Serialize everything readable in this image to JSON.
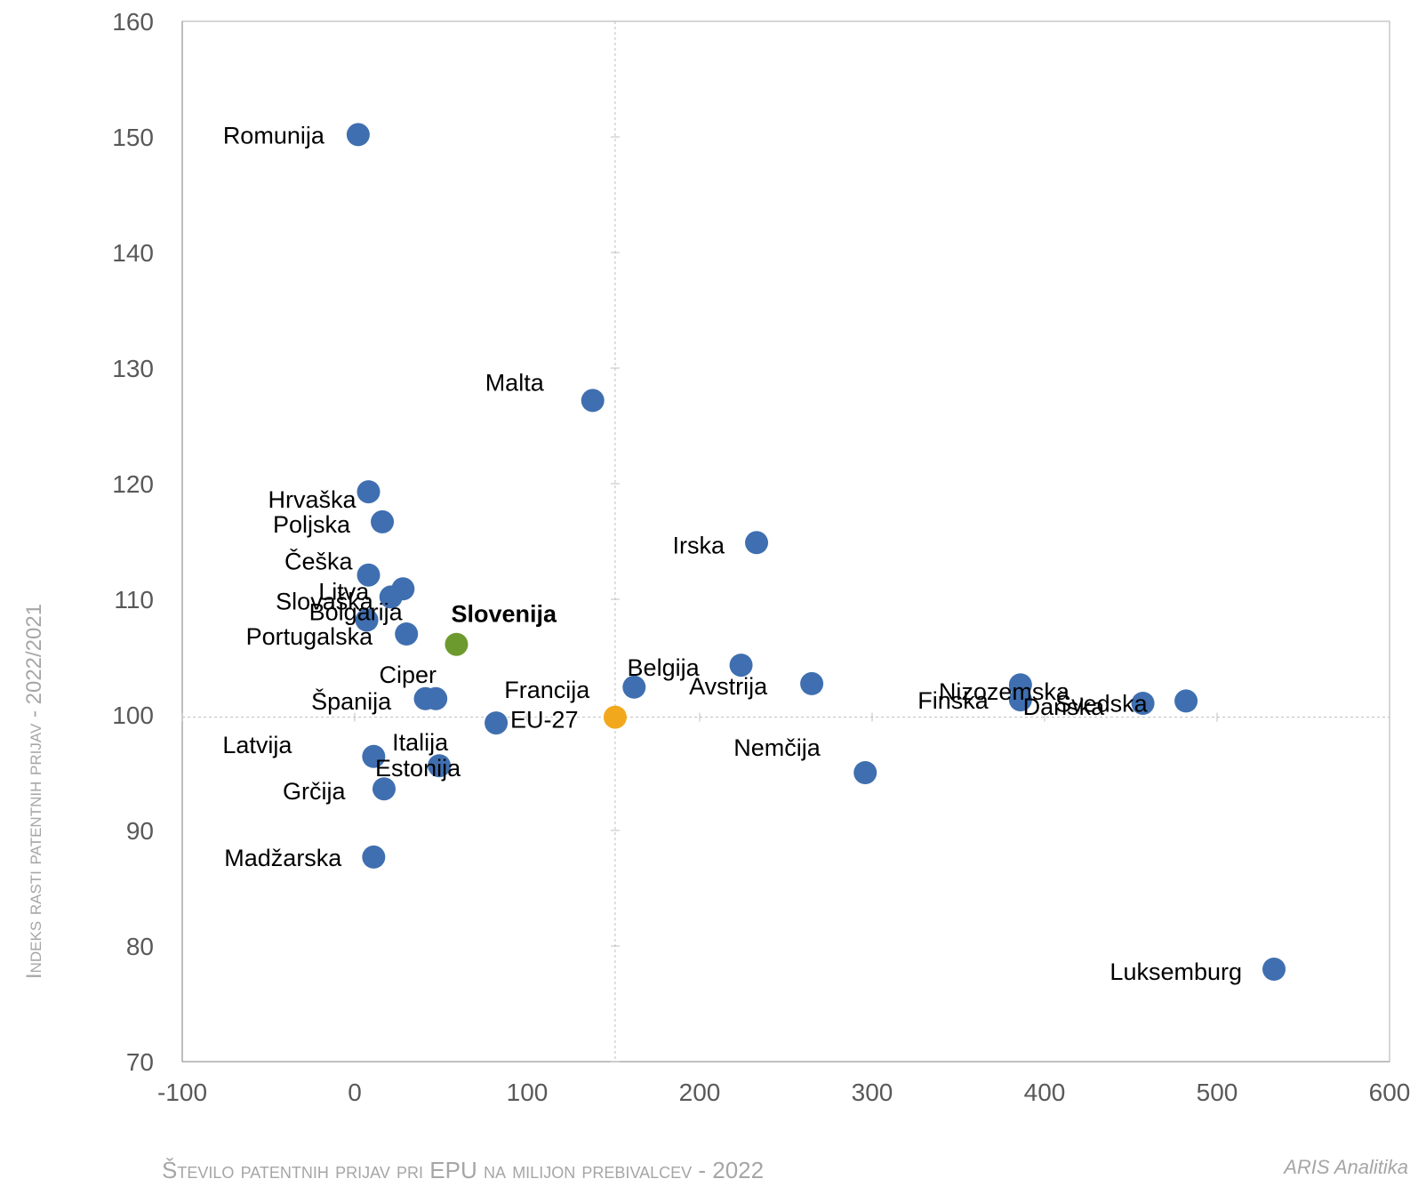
{
  "chart_data": {
    "type": "scatter",
    "title": "",
    "xlabel": "Število patentnih prijav pri EPU na milijon prebivalcev - 2022",
    "ylabel": "Indeks rasti patentnih prijav - 2022/2021",
    "xlim": [
      -100,
      600
    ],
    "ylim": [
      70,
      160
    ],
    "xticks": [
      "-100",
      "0",
      "100",
      "200",
      "300",
      "400",
      "500",
      "600"
    ],
    "yticks": [
      "70",
      "80",
      "90",
      "100",
      "110",
      "120",
      "130",
      "140",
      "150",
      "160"
    ],
    "reference_lines": {
      "x": 151,
      "y": 99.8
    },
    "grid": false,
    "colors": {
      "default": "#3f6fb0",
      "highlight": "#6d9a2f",
      "eu": "#f2a81d",
      "axis": "#a6a6a6",
      "tick": "#595959"
    },
    "points": [
      {
        "label": "Romunija",
        "x": 2,
        "y": 150.2,
        "group": "default"
      },
      {
        "label": "Malta",
        "x": 138,
        "y": 127.2,
        "group": "default"
      },
      {
        "label": "Hrvaška",
        "x": 8,
        "y": 119.3,
        "group": "default"
      },
      {
        "label": "Poljska",
        "x": 16,
        "y": 116.7,
        "group": "default"
      },
      {
        "label": "Irska",
        "x": 233,
        "y": 114.9,
        "group": "default"
      },
      {
        "label": "Češka",
        "x": 8,
        "y": 112.1,
        "group": "default"
      },
      {
        "label": "Litva",
        "x": 28,
        "y": 110.9,
        "group": "default"
      },
      {
        "label": "Slovaška",
        "x": 21,
        "y": 110.2,
        "group": "default"
      },
      {
        "label": "Bolgarija",
        "x": 7,
        "y": 108.2,
        "group": "default"
      },
      {
        "label": "Portugalska",
        "x": 30,
        "y": 107.0,
        "group": "default"
      },
      {
        "label": "Slovenija",
        "x": 59,
        "y": 106.1,
        "group": "highlight"
      },
      {
        "label": "Belgija",
        "x": 224,
        "y": 104.3,
        "group": "default"
      },
      {
        "label": "Avstrija",
        "x": 265,
        "y": 102.7,
        "group": "default"
      },
      {
        "label": "Francija",
        "x": 162,
        "y": 102.4,
        "group": "default"
      },
      {
        "label": "Nizozemska",
        "x": 386,
        "y": 102.6,
        "group": "default"
      },
      {
        "label": "Ciper",
        "x": 41,
        "y": 101.4,
        "group": "default"
      },
      {
        "label": "Španija",
        "x": 47,
        "y": 101.4,
        "group": "default"
      },
      {
        "label": "Finska",
        "x": 386,
        "y": 101.3,
        "group": "default"
      },
      {
        "label": "Švedska",
        "x": 482,
        "y": 101.2,
        "group": "default"
      },
      {
        "label": "Danska",
        "x": 457,
        "y": 101.0,
        "group": "default"
      },
      {
        "label": "EU-27",
        "x": 151,
        "y": 99.8,
        "group": "eu"
      },
      {
        "label": "Nemčija",
        "x": 296,
        "y": 95.0,
        "group": "default"
      },
      {
        "label": "Italija",
        "x": 82,
        "y": 99.3,
        "group": "default"
      },
      {
        "label": "Latvija",
        "x": 11,
        "y": 96.4,
        "group": "default"
      },
      {
        "label": "Estonija",
        "x": 49,
        "y": 95.6,
        "group": "default"
      },
      {
        "label": "Grčija",
        "x": 17,
        "y": 93.6,
        "group": "default"
      },
      {
        "label": "Madžarska",
        "x": 11,
        "y": 87.7,
        "group": "default"
      },
      {
        "label": "Luksemburg",
        "x": 533,
        "y": 78.0,
        "group": "default"
      }
    ]
  },
  "source_note": "ARIS Analitika"
}
